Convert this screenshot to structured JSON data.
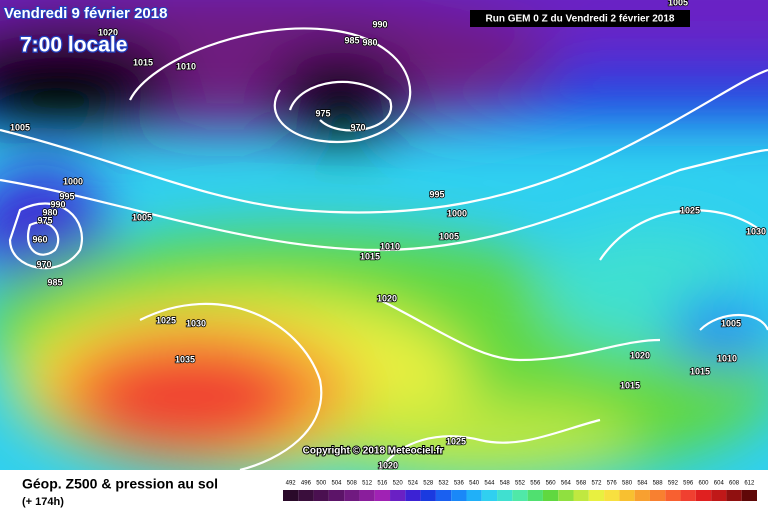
{
  "header": {
    "date": "Vendredi 9 février 2018",
    "time": "7:00 locale",
    "run": "Run GEM 0 Z du Vendredi 2 février 2018"
  },
  "footer": {
    "title": "Géop. Z500 & pression au sol",
    "lead": "(+ 174h)",
    "copyright": "Copyright © 2018 Meteociel.fr"
  },
  "isobar_labels": [
    "1005",
    "1015",
    "1010",
    "1020",
    "990",
    "985",
    "980",
    "975",
    "970",
    "1005",
    "1000",
    "995",
    "990",
    "980",
    "975",
    "960",
    "970",
    "985",
    "1005",
    "995",
    "1000",
    "1005",
    "1010",
    "1015",
    "1020",
    "1025",
    "1030",
    "1035",
    "1025",
    "1030",
    "1005",
    "1010",
    "1015",
    "1020",
    "1015",
    "1025",
    "1020"
  ],
  "scale": {
    "ticks": [
      492,
      496,
      500,
      504,
      508,
      512,
      516,
      520,
      524,
      528,
      532,
      536,
      540,
      544,
      548,
      552,
      556,
      560,
      564,
      568,
      572,
      576,
      580,
      584,
      588,
      592,
      596,
      600,
      604,
      608,
      612
    ],
    "colors": [
      "#2a0a2a",
      "#3a0e3c",
      "#4a1050",
      "#5c1468",
      "#701a80",
      "#8a1e9c",
      "#a022b4",
      "#6a20c4",
      "#3c22d4",
      "#1a3ae0",
      "#1a60f0",
      "#1a88f8",
      "#20b0f8",
      "#30d0f0",
      "#40e0d0",
      "#50e8a8",
      "#50e070",
      "#60d840",
      "#90e040",
      "#c0e840",
      "#e8f040",
      "#f8e040",
      "#f8c030",
      "#f8a030",
      "#f88030",
      "#f86030",
      "#f04030",
      "#e02020",
      "#c01818",
      "#901010",
      "#600808"
    ]
  }
}
